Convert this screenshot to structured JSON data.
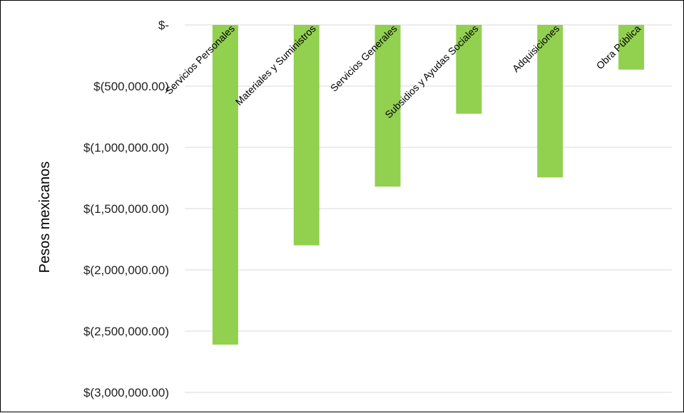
{
  "colors": {
    "bar": "#92d050",
    "grid": "#d9d9d9"
  },
  "chart_data": {
    "type": "bar",
    "ylabel": "Pesos mexicanos",
    "ylim": [
      -3000000,
      0
    ],
    "y_ticks": [
      0,
      -500000,
      -1000000,
      -1500000,
      -2000000,
      -2500000,
      -3000000
    ],
    "y_tick_labels": [
      "$-",
      "$(500,000.00)",
      "$(1,000,000.00)",
      "$(1,500,000.00)",
      "$(2,000,000.00)",
      "$(2,500,000.00)",
      "$(3,000,000.00)"
    ],
    "categories": [
      "Servicios Personales",
      "Materiales y Suministros",
      "Servicios Generales",
      "Subsidios y Ayudas Sociales",
      "Adquisiciones",
      "Obra Pública"
    ],
    "values": [
      -2610000,
      -1800000,
      -1320000,
      -725000,
      -1245000,
      -365000
    ],
    "grid": true,
    "legend": "none"
  }
}
